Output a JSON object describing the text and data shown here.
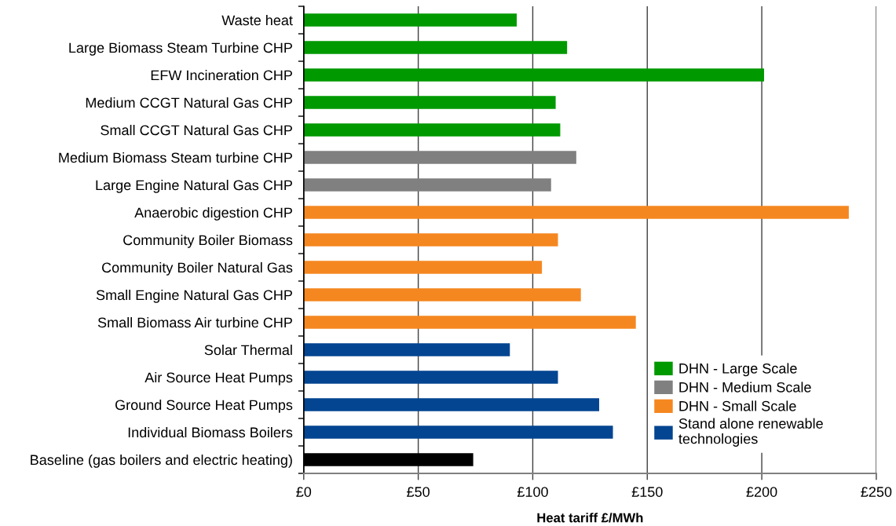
{
  "chart_data": {
    "type": "bar",
    "orientation": "horizontal",
    "stacked": true,
    "xlabel": "Heat tariff £/MWh",
    "categories": [
      "Waste heat",
      "Large Biomass Steam Turbine CHP",
      "EFW Incineration CHP",
      "Medium CCGT Natural Gas CHP",
      "Small CCGT Natural Gas CHP",
      "Medium Biomass Steam turbine CHP",
      "Large Engine Natural Gas CHP",
      "Anaerobic digestion CHP",
      "Community Boiler Biomass",
      "Community Boiler Natural Gas",
      "Small Engine Natural Gas CHP",
      "Small Biomass Air turbine CHP",
      "Solar Thermal",
      "Air Source Heat Pumps",
      "Ground Source Heat Pumps",
      "Individual Biomass Boilers",
      "Baseline (gas boilers and electric heating)"
    ],
    "series": [
      {
        "name": "DHN - Large Scale",
        "color": "#009900",
        "values": [
          93,
          115,
          201,
          110,
          112,
          null,
          null,
          null,
          null,
          null,
          null,
          null,
          null,
          null,
          null,
          null,
          null
        ]
      },
      {
        "name": "DHN - Medium Scale",
        "color": "#808080",
        "values": [
          null,
          null,
          null,
          null,
          null,
          119,
          108,
          null,
          null,
          null,
          null,
          null,
          null,
          null,
          null,
          null,
          null
        ]
      },
      {
        "name": "DHN - Small Scale",
        "color": "#f58720",
        "values": [
          null,
          null,
          null,
          null,
          null,
          null,
          null,
          238,
          111,
          104,
          121,
          145,
          null,
          null,
          null,
          null,
          null
        ]
      },
      {
        "name": "Stand alone renewable\ntechnologies",
        "color": "#034591",
        "values": [
          null,
          null,
          null,
          null,
          null,
          null,
          null,
          null,
          null,
          null,
          null,
          null,
          90,
          111,
          129,
          135,
          null
        ]
      },
      {
        "color": "#000000",
        "values": [
          null,
          null,
          null,
          null,
          null,
          null,
          null,
          null,
          null,
          null,
          null,
          null,
          null,
          null,
          null,
          null,
          74
        ]
      }
    ],
    "xlim": [
      0,
      250
    ],
    "xticks": [
      {
        "value": 0,
        "label": "£0"
      },
      {
        "value": 50,
        "label": "£50"
      },
      {
        "value": 100,
        "label": "£100"
      },
      {
        "value": 150,
        "label": "£150"
      },
      {
        "value": 200,
        "label": "£200"
      },
      {
        "value": 250,
        "label": "£250"
      }
    ],
    "grid": "x",
    "legend": "bottom right"
  }
}
